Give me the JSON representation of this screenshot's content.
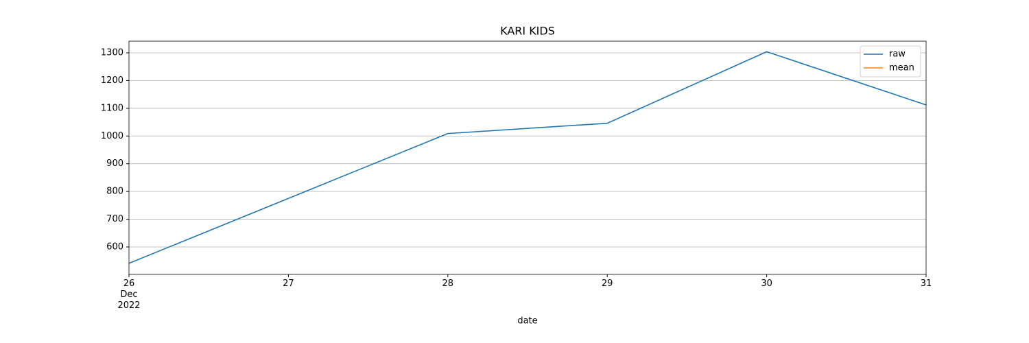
{
  "chart_data": {
    "type": "line",
    "title": "KARI KIDS",
    "x_label": "date",
    "x": [
      "2022-12-26",
      "2022-12-27",
      "2022-12-28",
      "2022-12-29",
      "2022-12-30",
      "2022-12-31"
    ],
    "series": [
      {
        "name": "raw",
        "color": "#1f77b4",
        "values": [
          541,
          775,
          1009,
          1046,
          1304,
          1112
        ]
      },
      {
        "name": "mean",
        "color": "#ff7f0e",
        "values": [
          null,
          null,
          null,
          null,
          null,
          null
        ]
      }
    ],
    "xlim": [
      "2022-12-26",
      "2022-12-31"
    ],
    "xticks": [
      {
        "value": "2022-12-26",
        "label": "26\nDec\n2022"
      },
      {
        "value": "2022-12-27",
        "label": "27"
      },
      {
        "value": "2022-12-28",
        "label": "28"
      },
      {
        "value": "2022-12-29",
        "label": "29"
      },
      {
        "value": "2022-12-30",
        "label": "30"
      },
      {
        "value": "2022-12-31",
        "label": "31"
      }
    ],
    "ylim": [
      501,
      1342
    ],
    "yticks": [
      600,
      700,
      800,
      900,
      1000,
      1100,
      1200,
      1300
    ],
    "grid": "y",
    "legend": "upper right"
  }
}
